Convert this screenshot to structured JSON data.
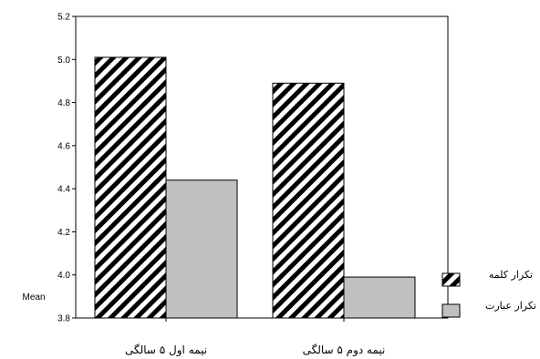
{
  "chart_data": {
    "type": "bar",
    "ylabel": "Mean",
    "ylim": [
      3.8,
      5.2
    ],
    "yticks": [
      3.8,
      4.0,
      4.2,
      4.4,
      4.6,
      4.8,
      5.0,
      5.2
    ],
    "categories": [
      "نیمه اول ۵ سالگی",
      "نیمه دوم ۵ سالگی"
    ],
    "series": [
      {
        "name": "تکرار کلمه",
        "values": [
          5.01,
          4.89
        ],
        "fill": "hatch"
      },
      {
        "name": "تکرار عبارت",
        "values": [
          4.44,
          3.99
        ],
        "fill": "#c0c0c0"
      }
    ],
    "grid": false,
    "legend_position": "right"
  }
}
